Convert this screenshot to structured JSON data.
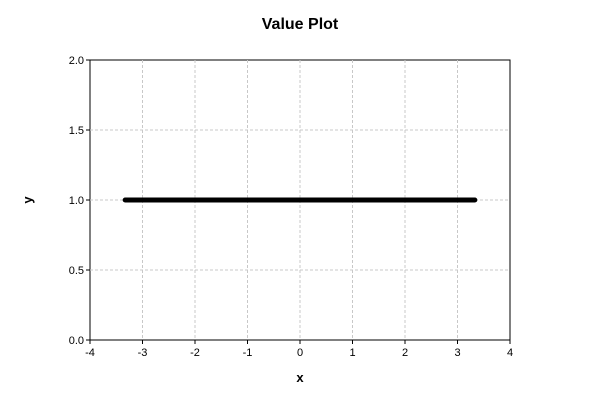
{
  "chart_data": {
    "type": "line",
    "title": "Value Plot",
    "xlabel": "x",
    "ylabel": "y",
    "xlim": [
      -4,
      4
    ],
    "ylim": [
      0.0,
      2.0
    ],
    "x_ticks": [
      "-4",
      "-3",
      "-2",
      "-1",
      "0",
      "1",
      "2",
      "3",
      "4"
    ],
    "y_ticks": [
      "0.0",
      "0.5",
      "1.0",
      "1.5",
      "2.0"
    ],
    "grid": true,
    "series": [
      {
        "x": [
          -3.33,
          3.33
        ],
        "y": [
          1.0,
          1.0
        ],
        "color": "#000000"
      }
    ]
  }
}
